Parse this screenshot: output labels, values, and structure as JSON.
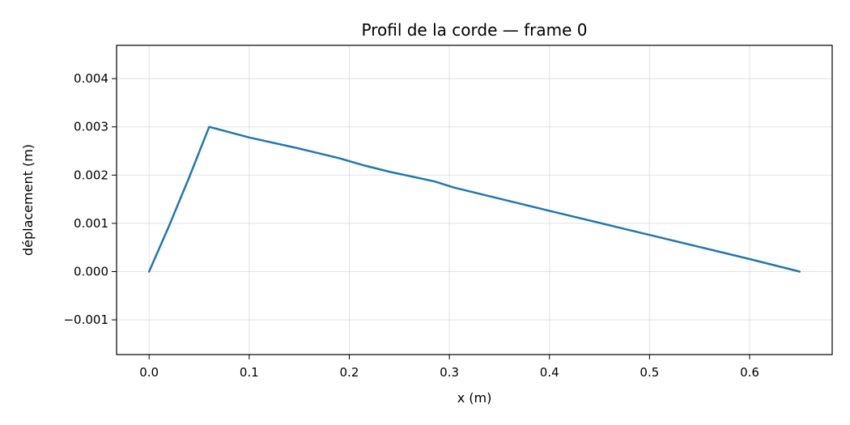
{
  "chart_data": {
    "type": "line",
    "title": "Profil de la corde — frame 0",
    "xlabel": "x (m)",
    "ylabel": "déplacement (m)",
    "xlim": [
      -0.0325,
      0.6825
    ],
    "ylim": [
      -0.00172,
      0.00469
    ],
    "xticks": [
      0.0,
      0.1,
      0.2,
      0.3,
      0.4,
      0.5,
      0.6
    ],
    "xtick_labels": [
      "0.0",
      "0.1",
      "0.2",
      "0.3",
      "0.4",
      "0.5",
      "0.6"
    ],
    "yticks": [
      -0.001,
      0.0,
      0.001,
      0.002,
      0.003,
      0.004
    ],
    "ytick_labels": [
      "−0.001",
      "0.000",
      "0.001",
      "0.002",
      "0.003",
      "0.004"
    ],
    "grid": true,
    "series": [
      {
        "color": "#1f77b4",
        "x": [
          0.0,
          0.02,
          0.04,
          0.06,
          0.1,
          0.15,
          0.19,
          0.215,
          0.24,
          0.285,
          0.305,
          0.4,
          0.5,
          0.6,
          0.65
        ],
        "y": [
          0.0,
          0.00095,
          0.00195,
          0.003,
          0.00278,
          0.00255,
          0.00235,
          0.0022,
          0.00207,
          0.00187,
          0.00174,
          0.00126,
          0.00076,
          0.00026,
          0.0
        ]
      }
    ]
  }
}
